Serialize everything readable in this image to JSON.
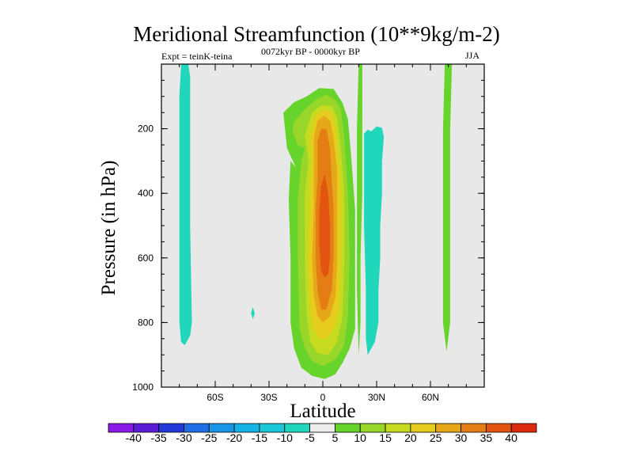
{
  "chart_data": {
    "type": "contour",
    "title": "Meridional Streamfunction (10**9kg/m-2)",
    "subtitle_left": "Expt = teinK-teina",
    "subtitle_center": "0072kyr BP - 0000kyr BP",
    "subtitle_right": "JJA",
    "xlabel": "Latitude",
    "ylabel": "Pressure (in hPa)",
    "xlim": [
      -90,
      90
    ],
    "ylim": [
      1000,
      0
    ],
    "x_ticks": [
      {
        "value": -60,
        "label": "60S"
      },
      {
        "value": -30,
        "label": "30S"
      },
      {
        "value": 0,
        "label": "0"
      },
      {
        "value": 30,
        "label": "30N"
      },
      {
        "value": 60,
        "label": "60N"
      }
    ],
    "y_ticks": [
      {
        "value": 200,
        "label": "200"
      },
      {
        "value": 400,
        "label": "400"
      },
      {
        "value": 600,
        "label": "600"
      },
      {
        "value": 800,
        "label": "800"
      },
      {
        "value": 1000,
        "label": "1000"
      }
    ],
    "background_color": "#e8e8e8",
    "colorbar": {
      "levels": [
        -40,
        -35,
        -30,
        -25,
        -20,
        -15,
        -10,
        -5,
        5,
        10,
        15,
        20,
        25,
        30,
        35,
        40
      ],
      "labels": [
        "-40",
        "-35",
        "-30",
        "-25",
        "-20",
        "-15",
        "-10",
        "-5",
        "5",
        "10",
        "15",
        "20",
        "25",
        "30",
        "35",
        "40"
      ],
      "colors": [
        "#8a1ae6",
        "#5a1cd4",
        "#2238d8",
        "#1f6ee6",
        "#1a96e8",
        "#15b3e6",
        "#18c7d8",
        "#20d6bb",
        "#ececec",
        "#66d42a",
        "#98d62a",
        "#c6da20",
        "#e6cc1c",
        "#e6a818",
        "#e47e14",
        "#e25410",
        "#dc2a0e"
      ]
    },
    "regions": [
      {
        "label": "-5",
        "color": "#20d6bb",
        "points": [
          [
            -79,
            0
          ],
          [
            -75,
            0
          ],
          [
            -74,
            40
          ],
          [
            -74,
            200
          ],
          [
            -74,
            500
          ],
          [
            -73,
            800
          ],
          [
            -74,
            840
          ],
          [
            -77,
            870
          ],
          [
            -79,
            860
          ],
          [
            -80,
            800
          ],
          [
            -80,
            400
          ],
          [
            -80,
            100
          ]
        ]
      },
      {
        "label": "-5",
        "color": "#20d6bb",
        "points": [
          [
            -39,
            752
          ],
          [
            -38,
            772
          ],
          [
            -39,
            790
          ],
          [
            -40,
            770
          ]
        ]
      },
      {
        "label": "-5",
        "color": "#20d6bb",
        "points": [
          [
            23,
            215
          ],
          [
            25,
            203
          ],
          [
            27,
            208
          ],
          [
            30,
            193
          ],
          [
            33,
            197
          ],
          [
            34,
            225
          ],
          [
            33,
            300
          ],
          [
            33,
            400
          ],
          [
            32,
            500
          ],
          [
            32,
            600
          ],
          [
            31,
            700
          ],
          [
            31,
            800
          ],
          [
            29,
            860
          ],
          [
            25,
            900
          ],
          [
            24,
            850
          ],
          [
            24,
            700
          ],
          [
            23,
            500
          ],
          [
            23,
            300
          ]
        ]
      },
      {
        "label": "5",
        "color": "#66d42a",
        "points": [
          [
            -20,
            260
          ],
          [
            -22,
            150
          ],
          [
            -16,
            118
          ],
          [
            -9,
            100
          ],
          [
            -2,
            74
          ],
          [
            6,
            77
          ],
          [
            11,
            120
          ],
          [
            14,
            170
          ],
          [
            16,
            300
          ],
          [
            18,
            450
          ],
          [
            18,
            600
          ],
          [
            18,
            700
          ],
          [
            18,
            820
          ],
          [
            15,
            880
          ],
          [
            11,
            925
          ],
          [
            7,
            960
          ],
          [
            1,
            975
          ],
          [
            -6,
            965
          ],
          [
            -12,
            940
          ],
          [
            -16,
            880
          ],
          [
            -18,
            800
          ],
          [
            -18,
            600
          ],
          [
            -19,
            420
          ],
          [
            -18,
            300
          ],
          [
            -15,
            320
          ]
        ]
      },
      {
        "label": "5",
        "color": "#66d42a",
        "points": [
          [
            20,
            0
          ],
          [
            22,
            0
          ],
          [
            22,
            200
          ],
          [
            22,
            400
          ],
          [
            21,
            600
          ],
          [
            21,
            800
          ],
          [
            20,
            900
          ],
          [
            19,
            700
          ],
          [
            19,
            400
          ],
          [
            19,
            200
          ]
        ]
      },
      {
        "label": "5",
        "color": "#66d42a",
        "points": [
          [
            68,
            0
          ],
          [
            72,
            0
          ],
          [
            71,
            200
          ],
          [
            71,
            500
          ],
          [
            71,
            800
          ],
          [
            69,
            890
          ],
          [
            67,
            800
          ],
          [
            67,
            500
          ],
          [
            67,
            200
          ]
        ]
      },
      {
        "label": "10",
        "color": "#98d62a",
        "points": [
          [
            -17,
            210
          ],
          [
            -16,
            180
          ],
          [
            -11,
            145
          ],
          [
            -4,
            110
          ],
          [
            2,
            95
          ],
          [
            7,
            110
          ],
          [
            10,
            140
          ],
          [
            12,
            230
          ],
          [
            14,
            400
          ],
          [
            15,
            600
          ],
          [
            14,
            780
          ],
          [
            12,
            870
          ],
          [
            7,
            915
          ],
          [
            0,
            935
          ],
          [
            -6,
            920
          ],
          [
            -10,
            880
          ],
          [
            -13,
            820
          ],
          [
            -14,
            600
          ],
          [
            -14,
            420
          ],
          [
            -12,
            300
          ],
          [
            -10,
            260
          ],
          [
            -14,
            250
          ]
        ]
      },
      {
        "label": "15",
        "color": "#c6da20",
        "points": [
          [
            -10,
            220
          ],
          [
            -6,
            150
          ],
          [
            -1,
            128
          ],
          [
            5,
            130
          ],
          [
            8,
            165
          ],
          [
            10,
            260
          ],
          [
            12,
            400
          ],
          [
            12,
            600
          ],
          [
            11,
            780
          ],
          [
            8,
            860
          ],
          [
            3,
            900
          ],
          [
            -3,
            895
          ],
          [
            -7,
            860
          ],
          [
            -9,
            780
          ],
          [
            -10,
            600
          ],
          [
            -10,
            400
          ],
          [
            -8,
            300
          ]
        ]
      },
      {
        "label": "20",
        "color": "#e6cc1c",
        "points": [
          [
            -7,
            230
          ],
          [
            -4,
            160
          ],
          [
            0,
            140
          ],
          [
            5,
            150
          ],
          [
            7,
            200
          ],
          [
            9,
            300
          ],
          [
            10,
            400
          ],
          [
            10,
            600
          ],
          [
            9,
            760
          ],
          [
            6,
            820
          ],
          [
            2,
            850
          ],
          [
            -2,
            850
          ],
          [
            -5,
            820
          ],
          [
            -7,
            760
          ],
          [
            -8,
            600
          ],
          [
            -7,
            420
          ],
          [
            -6,
            300
          ]
        ]
      },
      {
        "label": "25",
        "color": "#e6a818",
        "points": [
          [
            -5,
            230
          ],
          [
            -3,
            175
          ],
          [
            1,
            160
          ],
          [
            4,
            175
          ],
          [
            6,
            230
          ],
          [
            8,
            330
          ],
          [
            8,
            450
          ],
          [
            8,
            600
          ],
          [
            7,
            720
          ],
          [
            4,
            780
          ],
          [
            0,
            800
          ],
          [
            -3,
            780
          ],
          [
            -5,
            720
          ],
          [
            -6,
            600
          ],
          [
            -5,
            450
          ],
          [
            -5,
            330
          ]
        ]
      },
      {
        "label": "30",
        "color": "#e47e14",
        "points": [
          [
            -3,
            240
          ],
          [
            -1,
            200
          ],
          [
            2,
            200
          ],
          [
            4,
            260
          ],
          [
            5,
            360
          ],
          [
            6,
            450
          ],
          [
            6,
            600
          ],
          [
            5,
            700
          ],
          [
            2,
            760
          ],
          [
            -1,
            760
          ],
          [
            -3,
            700
          ],
          [
            -4,
            600
          ],
          [
            -4,
            450
          ],
          [
            -3,
            360
          ]
        ]
      },
      {
        "label": "35",
        "color": "#e25410",
        "points": [
          [
            -1,
            380
          ],
          [
            1,
            340
          ],
          [
            3,
            400
          ],
          [
            4,
            500
          ],
          [
            4,
            600
          ],
          [
            3,
            650
          ],
          [
            1,
            660
          ],
          [
            -1,
            640
          ],
          [
            -2,
            560
          ],
          [
            -2,
            460
          ]
        ]
      }
    ]
  }
}
